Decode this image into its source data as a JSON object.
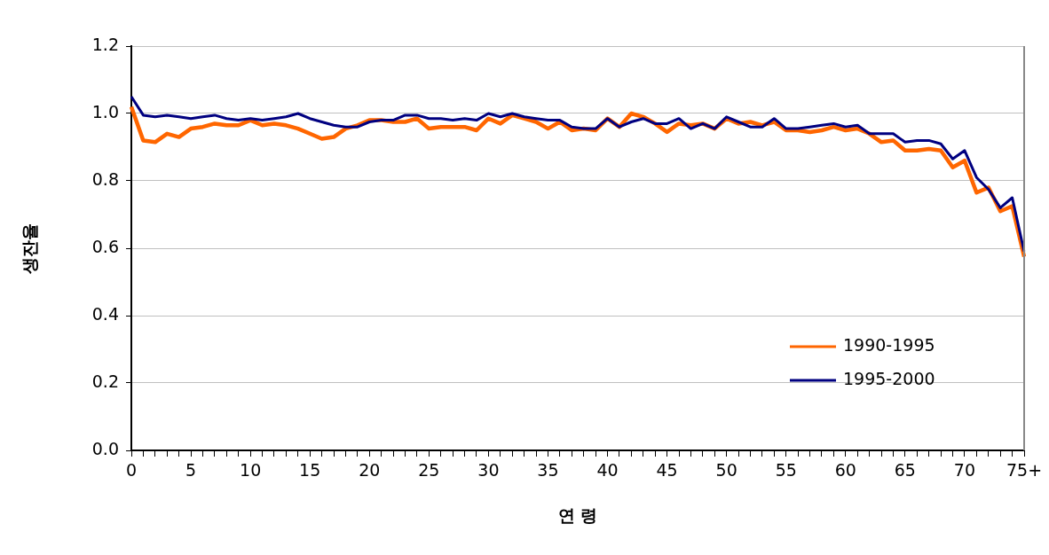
{
  "chart_data": {
    "type": "line",
    "xlabel": "연 령",
    "ylabel": "생잔율",
    "categories": [
      "0",
      null,
      null,
      null,
      null,
      "5",
      null,
      null,
      null,
      null,
      "10",
      null,
      null,
      null,
      null,
      "15",
      null,
      null,
      null,
      null,
      "20",
      null,
      null,
      null,
      null,
      "25",
      null,
      null,
      null,
      null,
      "30",
      null,
      null,
      null,
      null,
      "35",
      null,
      null,
      null,
      null,
      "40",
      null,
      null,
      null,
      null,
      "45",
      null,
      null,
      null,
      null,
      "50",
      null,
      null,
      null,
      null,
      "55",
      null,
      null,
      null,
      null,
      "60",
      null,
      null,
      null,
      null,
      "65",
      null,
      null,
      null,
      null,
      "70",
      null,
      null,
      null,
      null,
      "75+"
    ],
    "series": [
      {
        "name": "1990-1995",
        "color": "#ff6600",
        "values": [
          1.02,
          0.92,
          0.915,
          0.94,
          0.93,
          0.955,
          0.96,
          0.97,
          0.965,
          0.965,
          0.98,
          0.965,
          0.97,
          0.965,
          0.955,
          0.94,
          0.925,
          0.93,
          0.955,
          0.965,
          0.98,
          0.98,
          0.975,
          0.975,
          0.985,
          0.955,
          0.96,
          0.96,
          0.96,
          0.95,
          0.985,
          0.97,
          0.995,
          0.985,
          0.975,
          0.955,
          0.975,
          0.95,
          0.955,
          0.95,
          0.985,
          0.96,
          1.0,
          0.99,
          0.97,
          0.945,
          0.97,
          0.965,
          0.97,
          0.955,
          0.985,
          0.97,
          0.975,
          0.965,
          0.975,
          0.95,
          0.95,
          0.945,
          0.95,
          0.96,
          0.95,
          0.955,
          0.94,
          0.915,
          0.92,
          0.89,
          0.89,
          0.895,
          0.89,
          0.84,
          0.86,
          0.765,
          0.78,
          0.71,
          0.725,
          0.575
        ]
      },
      {
        "name": "1995-2000",
        "color": "#000080",
        "values": [
          1.05,
          0.995,
          0.99,
          0.995,
          0.99,
          0.985,
          0.99,
          0.995,
          0.985,
          0.98,
          0.985,
          0.98,
          0.985,
          0.99,
          1.0,
          0.985,
          0.975,
          0.965,
          0.96,
          0.96,
          0.975,
          0.98,
          0.98,
          0.995,
          0.995,
          0.985,
          0.985,
          0.98,
          0.985,
          0.98,
          1.0,
          0.99,
          1.0,
          0.99,
          0.985,
          0.98,
          0.98,
          0.96,
          0.955,
          0.955,
          0.985,
          0.96,
          0.975,
          0.985,
          0.97,
          0.97,
          0.985,
          0.955,
          0.97,
          0.955,
          0.99,
          0.975,
          0.96,
          0.96,
          0.985,
          0.955,
          0.955,
          0.96,
          0.965,
          0.97,
          0.96,
          0.965,
          0.94,
          0.94,
          0.94,
          0.915,
          0.92,
          0.92,
          0.91,
          0.865,
          0.89,
          0.81,
          0.775,
          0.72,
          0.75,
          0.59
        ]
      }
    ],
    "ylim": [
      0,
      1.2
    ],
    "yticks": [
      {
        "value": 0,
        "label": "0.0"
      },
      {
        "value": 0.2,
        "label": "0.2"
      },
      {
        "value": 0.4,
        "label": "0.4"
      },
      {
        "value": 0.6,
        "label": "0.6"
      },
      {
        "value": 0.8,
        "label": "0.8"
      },
      {
        "value": 1,
        "label": "1.0"
      },
      {
        "value": 1.2,
        "label": "1.2"
      }
    ],
    "grid": "y",
    "legend": "bottom right",
    "marker": "none",
    "line_style": "solid"
  }
}
